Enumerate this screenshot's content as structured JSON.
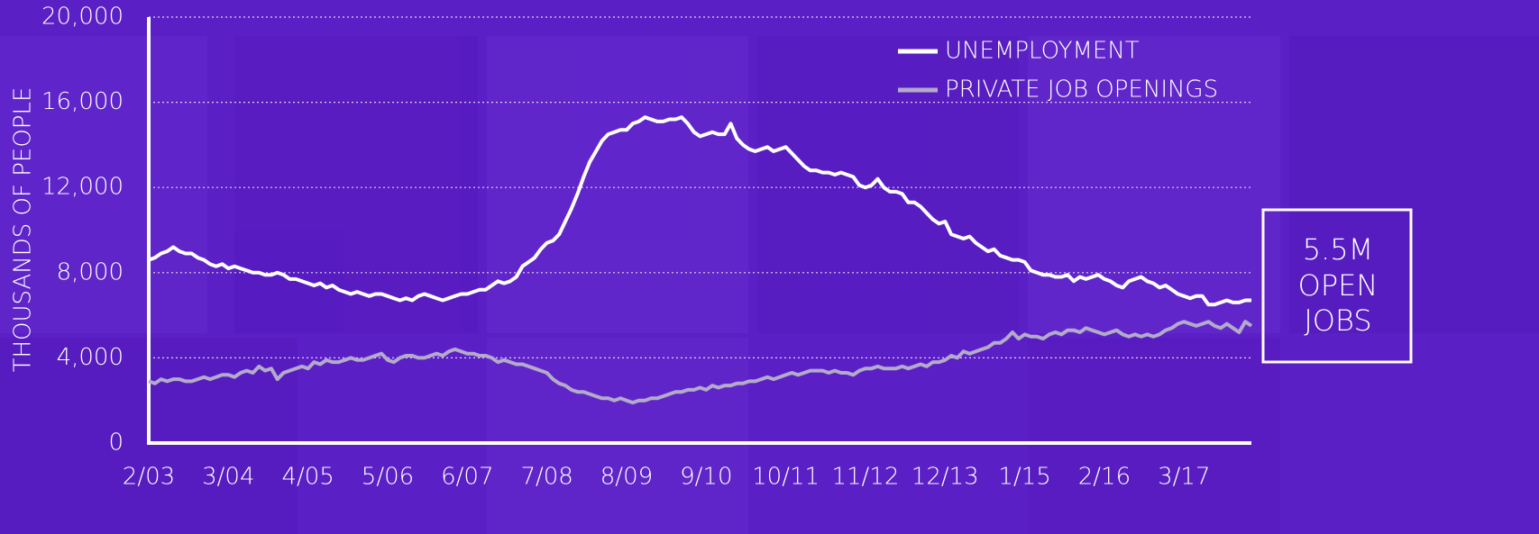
{
  "chart_data": {
    "type": "line",
    "y_axis_label": "THOUSANDS OF PEOPLE",
    "annotation": [
      "5.5M",
      "OPEN",
      "JOBS"
    ],
    "legend": "top-right",
    "grid": true,
    "ylim": [
      0,
      20000
    ],
    "yticks": [
      0,
      {
        "value": 4000,
        "label": "4,000"
      },
      {
        "value": 8000,
        "label": "8,000"
      },
      {
        "value": 12000,
        "label": "12,000"
      },
      {
        "value": 16000,
        "label": "16,000"
      },
      {
        "value": 20000,
        "label": "20,000"
      }
    ],
    "categories": [
      "2/03",
      null,
      null,
      null,
      null,
      null,
      null,
      null,
      null,
      null,
      null,
      null,
      null,
      "3/04",
      null,
      null,
      null,
      null,
      null,
      null,
      null,
      null,
      null,
      null,
      null,
      null,
      "4/05",
      null,
      null,
      null,
      null,
      null,
      null,
      null,
      null,
      null,
      null,
      null,
      null,
      "5/06",
      null,
      null,
      null,
      null,
      null,
      null,
      null,
      null,
      null,
      null,
      null,
      null,
      "6/07",
      null,
      null,
      null,
      null,
      null,
      null,
      null,
      null,
      null,
      null,
      null,
      null,
      "7/08",
      null,
      null,
      null,
      null,
      null,
      null,
      null,
      null,
      null,
      null,
      null,
      null,
      "8/09",
      null,
      null,
      null,
      null,
      null,
      null,
      null,
      null,
      null,
      null,
      null,
      null,
      "9/10",
      null,
      null,
      null,
      null,
      null,
      null,
      null,
      null,
      null,
      null,
      null,
      null,
      "10/11",
      null,
      null,
      null,
      null,
      null,
      null,
      null,
      null,
      null,
      null,
      null,
      null,
      "11/12",
      null,
      null,
      null,
      null,
      null,
      null,
      null,
      null,
      null,
      null,
      null,
      null,
      "12/13",
      null,
      null,
      null,
      null,
      null,
      null,
      null,
      null,
      null,
      null,
      null,
      null,
      "1/15",
      null,
      null,
      null,
      null,
      null,
      null,
      null,
      null,
      null,
      null,
      null,
      null,
      "2/16",
      null,
      null,
      null,
      null,
      null,
      null,
      null,
      null,
      null,
      null,
      null,
      null,
      "3/17",
      null,
      null,
      null,
      null,
      null,
      null,
      null,
      null,
      null,
      null,
      null
    ],
    "series": [
      {
        "name": "UNEMPLOYMENT",
        "color": "#ffffff",
        "values": [
          8600,
          8700,
          8900,
          9000,
          9200,
          9000,
          8900,
          8900,
          8700,
          8600,
          8400,
          8300,
          8400,
          8200,
          8300,
          8200,
          8100,
          8000,
          8000,
          7900,
          7900,
          8000,
          7900,
          7700,
          7700,
          7600,
          7500,
          7400,
          7500,
          7300,
          7400,
          7200,
          7100,
          7000,
          7100,
          7000,
          6900,
          7000,
          7000,
          6900,
          6800,
          6700,
          6800,
          6700,
          6900,
          7000,
          6900,
          6800,
          6700,
          6800,
          6900,
          7000,
          7000,
          7100,
          7200,
          7200,
          7400,
          7600,
          7500,
          7600,
          7800,
          8300,
          8500,
          8700,
          9100,
          9400,
          9500,
          9800,
          10400,
          11000,
          11700,
          12500,
          13200,
          13700,
          14200,
          14500,
          14600,
          14700,
          14700,
          15000,
          15100,
          15300,
          15200,
          15100,
          15100,
          15200,
          15200,
          15300,
          15000,
          14600,
          14400,
          14500,
          14600,
          14500,
          14500,
          15000,
          14300,
          14000,
          13800,
          13700,
          13800,
          13900,
          13700,
          13800,
          13900,
          13600,
          13300,
          13000,
          12800,
          12800,
          12700,
          12700,
          12600,
          12700,
          12600,
          12500,
          12100,
          12000,
          12100,
          12400,
          12000,
          11800,
          11800,
          11700,
          11300,
          11300,
          11100,
          10800,
          10500,
          10300,
          10400,
          9800,
          9700,
          9600,
          9700,
          9400,
          9200,
          9000,
          9100,
          8800,
          8700,
          8600,
          8600,
          8500,
          8100,
          8000,
          7900,
          7900,
          7800,
          7800,
          7900,
          7600,
          7800,
          7700,
          7800,
          7900,
          7700,
          7600,
          7400,
          7300,
          7600,
          7700,
          7800,
          7600,
          7500,
          7300,
          7400,
          7200,
          7000,
          6900,
          6800,
          6900,
          6900,
          6500,
          6500,
          6600,
          6700,
          6600,
          6600,
          6700,
          6700
        ]
      },
      {
        "name": "PRIVATE JOB OPENINGS",
        "color": "#b3abc9",
        "values": [
          2900,
          2800,
          3000,
          2900,
          3000,
          3000,
          2900,
          2900,
          3000,
          3100,
          3000,
          3100,
          3200,
          3200,
          3100,
          3300,
          3400,
          3300,
          3600,
          3400,
          3500,
          3000,
          3300,
          3400,
          3500,
          3600,
          3500,
          3800,
          3700,
          3900,
          3800,
          3800,
          3900,
          4000,
          3900,
          3900,
          4000,
          4100,
          4200,
          3900,
          3800,
          4000,
          4100,
          4100,
          4000,
          4000,
          4100,
          4200,
          4100,
          4300,
          4400,
          4300,
          4200,
          4200,
          4100,
          4100,
          4000,
          3800,
          3900,
          3800,
          3700,
          3700,
          3600,
          3500,
          3400,
          3300,
          3000,
          2800,
          2700,
          2500,
          2400,
          2400,
          2300,
          2200,
          2100,
          2100,
          2000,
          2100,
          2000,
          1900,
          2000,
          2000,
          2100,
          2100,
          2200,
          2300,
          2400,
          2400,
          2500,
          2500,
          2600,
          2500,
          2700,
          2600,
          2700,
          2700,
          2800,
          2800,
          2900,
          2900,
          3000,
          3100,
          3000,
          3100,
          3200,
          3300,
          3200,
          3300,
          3400,
          3400,
          3400,
          3300,
          3400,
          3300,
          3300,
          3200,
          3400,
          3500,
          3500,
          3600,
          3500,
          3500,
          3500,
          3600,
          3500,
          3600,
          3700,
          3600,
          3800,
          3800,
          3900,
          4100,
          4000,
          4300,
          4200,
          4300,
          4400,
          4500,
          4700,
          4700,
          4900,
          5200,
          4900,
          5100,
          5000,
          5000,
          4900,
          5100,
          5200,
          5100,
          5300,
          5300,
          5200,
          5400,
          5300,
          5200,
          5100,
          5200,
          5300,
          5100,
          5000,
          5100,
          5000,
          5100,
          5000,
          5100,
          5300,
          5400,
          5600,
          5700,
          5600,
          5500,
          5600,
          5700,
          5500,
          5400,
          5600,
          5400,
          5200,
          5700,
          5500
        ]
      }
    ]
  }
}
